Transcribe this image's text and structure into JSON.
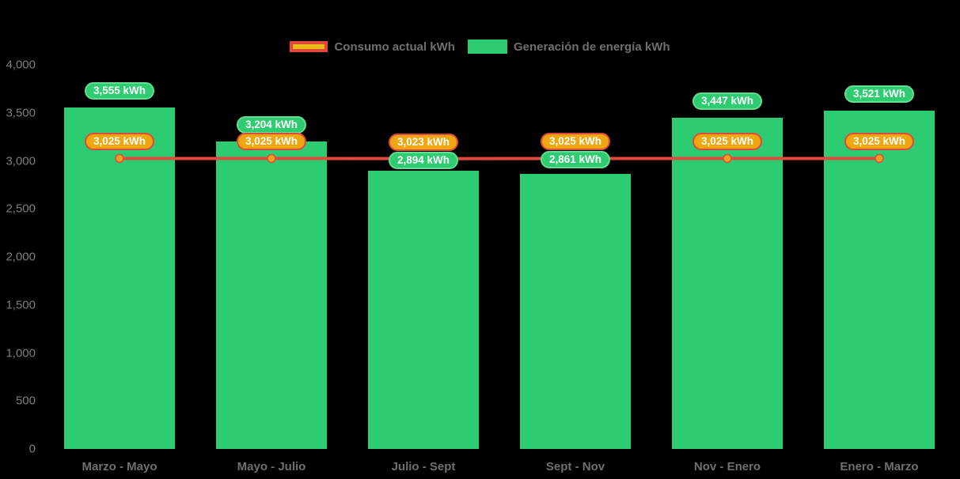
{
  "legend": {
    "items": [
      {
        "key": "consumption",
        "label": "Consumo actual kWh"
      },
      {
        "key": "generation",
        "label": "Generación de energía kWh"
      }
    ]
  },
  "chart_data": {
    "type": "bar",
    "subtype": "bar-with-line-overlay",
    "categories": [
      "Marzo - Mayo",
      "Mayo - Julio",
      "Julio - Sept",
      "Sept - Nov",
      "Nov - Enero",
      "Enero - Marzo"
    ],
    "series": [
      {
        "name": "Generación de energía kWh",
        "type": "bar",
        "values": [
          3555,
          3204,
          2894,
          2861,
          3447,
          3521
        ],
        "labels": [
          "3,555 kWh",
          "3,204 kWh",
          "2,894 kWh",
          "2,861 kWh",
          "3,447 kWh",
          "3,521 kWh"
        ],
        "color": "#2ecc71",
        "label_border_color": "#62dd92"
      },
      {
        "name": "Consumo actual kWh",
        "type": "line",
        "values": [
          3025,
          3025,
          3023,
          3025,
          3025,
          3025
        ],
        "labels": [
          "3,025 kWh",
          "3,025 kWh",
          "3,023 kWh",
          "3,025 kWh",
          "3,025 kWh",
          "3,025 kWh"
        ],
        "color": "#e2493d",
        "marker_color": "#f5a01b",
        "label_fill_color": "#f0a60e"
      }
    ],
    "title": "",
    "xlabel": "",
    "ylabel": "",
    "ylim": [
      0,
      4000
    ],
    "ytick_interval": 500,
    "ytick_labels": [
      "0",
      "500",
      "1,000",
      "1,500",
      "2,000",
      "2,500",
      "3,000",
      "3,500",
      "4,000"
    ],
    "grid": false,
    "legend_position": "top-center",
    "background_color": "#000000",
    "axis_text_color": "#7d7d7d"
  }
}
